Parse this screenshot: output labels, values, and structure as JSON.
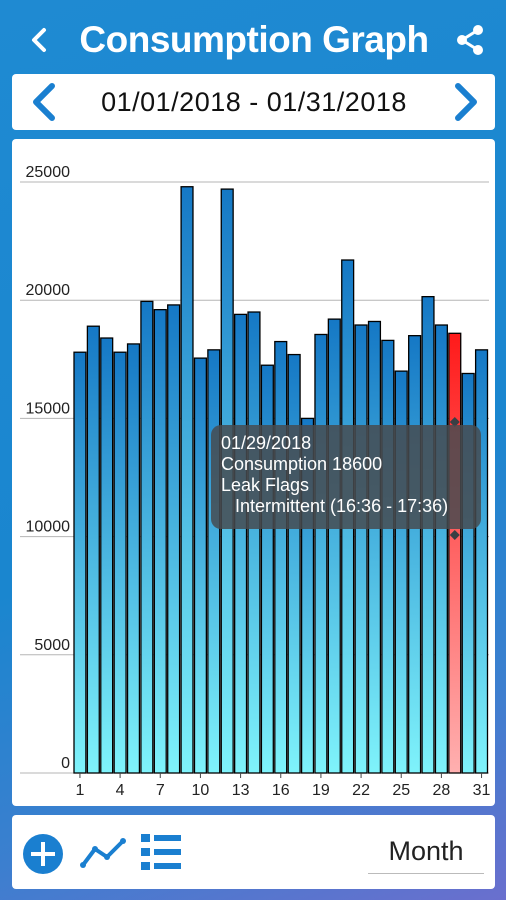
{
  "header": {
    "title": "Consumption Graph",
    "back_icon": "back-icon",
    "share_icon": "share-icon"
  },
  "date_nav": {
    "range": "01/01/2018 - 01/31/2018",
    "prev_icon": "chevron-left-icon",
    "next_icon": "chevron-right-icon"
  },
  "chart_data": {
    "type": "bar",
    "title": "",
    "xlabel": "",
    "ylabel": "",
    "ylim": [
      0,
      25000
    ],
    "yticks": [
      "0",
      "5000",
      "10000",
      "15000",
      "20000",
      "25000"
    ],
    "xticks": [
      "1",
      "4",
      "7",
      "10",
      "13",
      "16",
      "19",
      "22",
      "25",
      "28",
      "31"
    ],
    "categories": [
      "1",
      "2",
      "3",
      "4",
      "5",
      "6",
      "7",
      "8",
      "9",
      "10",
      "11",
      "12",
      "13",
      "14",
      "15",
      "16",
      "17",
      "18",
      "19",
      "20",
      "21",
      "22",
      "23",
      "24",
      "25",
      "26",
      "27",
      "28",
      "29",
      "30",
      "31"
    ],
    "values": [
      17800,
      18900,
      18400,
      17800,
      18150,
      19950,
      19600,
      19800,
      24800,
      17550,
      17900,
      24700,
      19400,
      19500,
      17250,
      18250,
      17700,
      15000,
      18550,
      19200,
      21700,
      18950,
      19100,
      18300,
      17000,
      18500,
      20150,
      18950,
      18600,
      16900,
      17900
    ],
    "highlight_index": 28,
    "colors": {
      "bar_top": "#1578c5",
      "bar_bottom": "#7ff3fb",
      "highlight": "#ff1a1a",
      "grid": "#b5b5b5"
    },
    "tooltip": {
      "date": "01/29/2018",
      "consumption": "Consumption 18600",
      "flags_label": "Leak Flags",
      "flag": "Intermittent (16:36 - 17:36)"
    }
  },
  "toolbar": {
    "add_icon": "add-icon",
    "line_icon": "line-chart-icon",
    "list_icon": "list-icon",
    "period": "Month"
  }
}
